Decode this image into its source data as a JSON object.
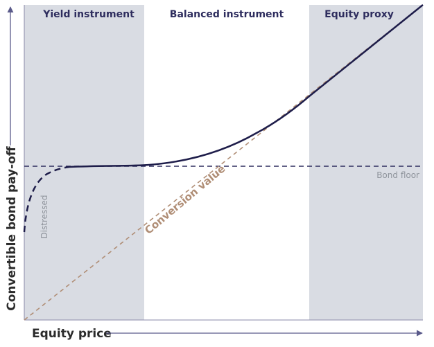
{
  "zones": [
    {
      "label": "Yield instrument",
      "shaded": true
    },
    {
      "label": "Balanced instrument",
      "shaded": false
    },
    {
      "label": "Equity proxy",
      "shaded": true
    }
  ],
  "labels": {
    "bond_floor": "Bond floor",
    "distressed": "Distressed",
    "conversion_value": "Conversion value"
  },
  "axes": {
    "x_label": "Equity price",
    "y_label": "Convertible bond pay-off"
  },
  "colors": {
    "zone_shade": "#d9dce3",
    "payoff_curve": "#1e1d4a",
    "bond_floor": "#2e2d5e",
    "conversion_value": "#b08e76",
    "axis": "#5a5a8a"
  }
}
